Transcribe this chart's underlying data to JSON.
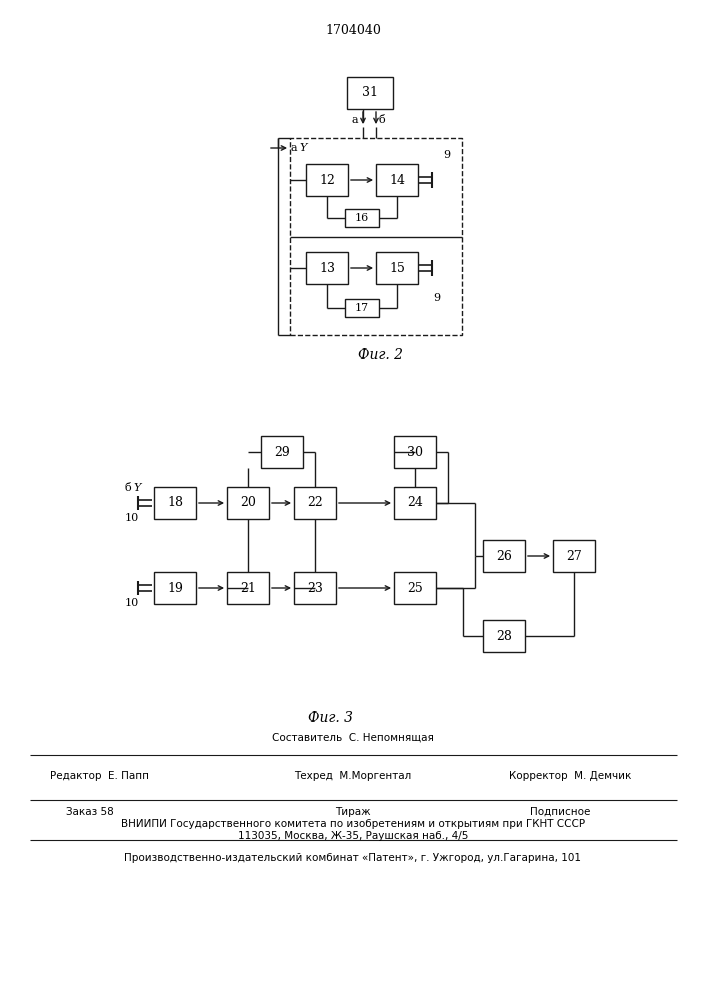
{
  "title": "1704040",
  "fig2_caption": "Фиг. 2",
  "fig3_caption": "Фиг. 3",
  "bg_color": "#ffffff",
  "line_color": "#1a1a1a",
  "box_color": "#ffffff",
  "footer_line1": "Составитель  С. Непомнящая",
  "footer_line2_left": "Редактор  Е. Папп",
  "footer_line2_mid": "Техред  М.Моргентал",
  "footer_line2_right": "Корректор  М. Демчик",
  "footer_line3_left": "Заказ 58",
  "footer_line3_mid": "Тираж",
  "footer_line3_right": "Подписное",
  "footer_line4": "ВНИИПИ Государственного комитета по изобретениям и открытиям при ГКНТ СССР",
  "footer_line5": "113035, Москва, Ж-35, Раушская наб., 4/5",
  "footer_line6": "Производственно-издательский комбинат «Патент», г. Ужгород, ул.Гагарина, 101"
}
